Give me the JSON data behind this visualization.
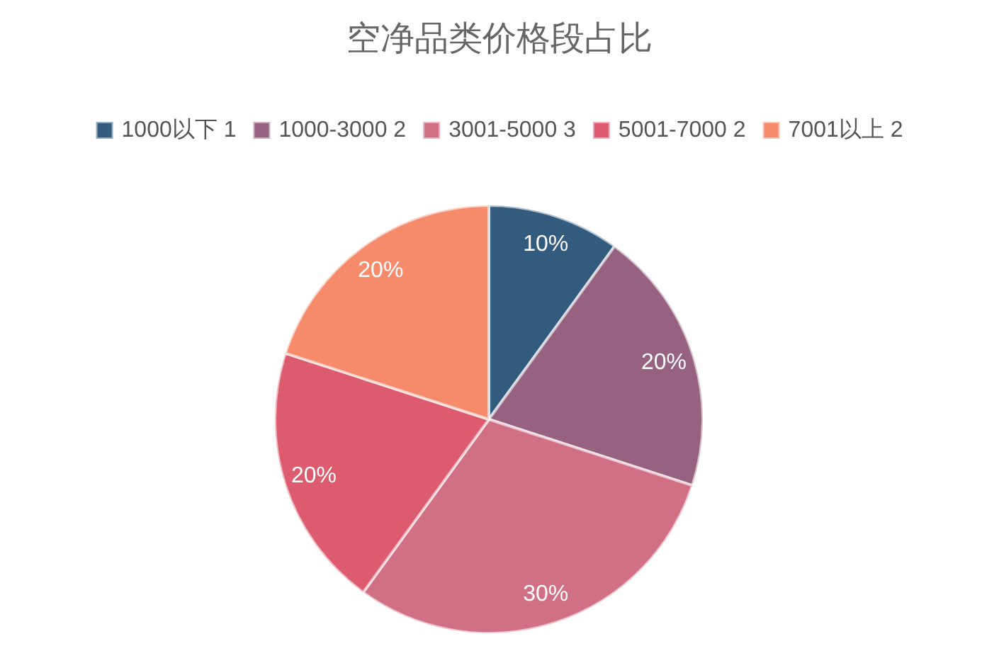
{
  "chart_data": {
    "type": "pie",
    "title": "空净品类价格段占比",
    "categories": [
      "1000以下 1",
      "1000-3000 2",
      "3001-5000 3",
      "5001-7000 2",
      "7001以上 2"
    ],
    "values": [
      10,
      20,
      30,
      20,
      20
    ],
    "value_labels": [
      "10%",
      "20%",
      "30%",
      "20%",
      "20%"
    ],
    "colors": [
      "#335b7d",
      "#96627f",
      "#d16f84",
      "#dc5b6f",
      "#f68b6b"
    ],
    "legend": "top"
  }
}
